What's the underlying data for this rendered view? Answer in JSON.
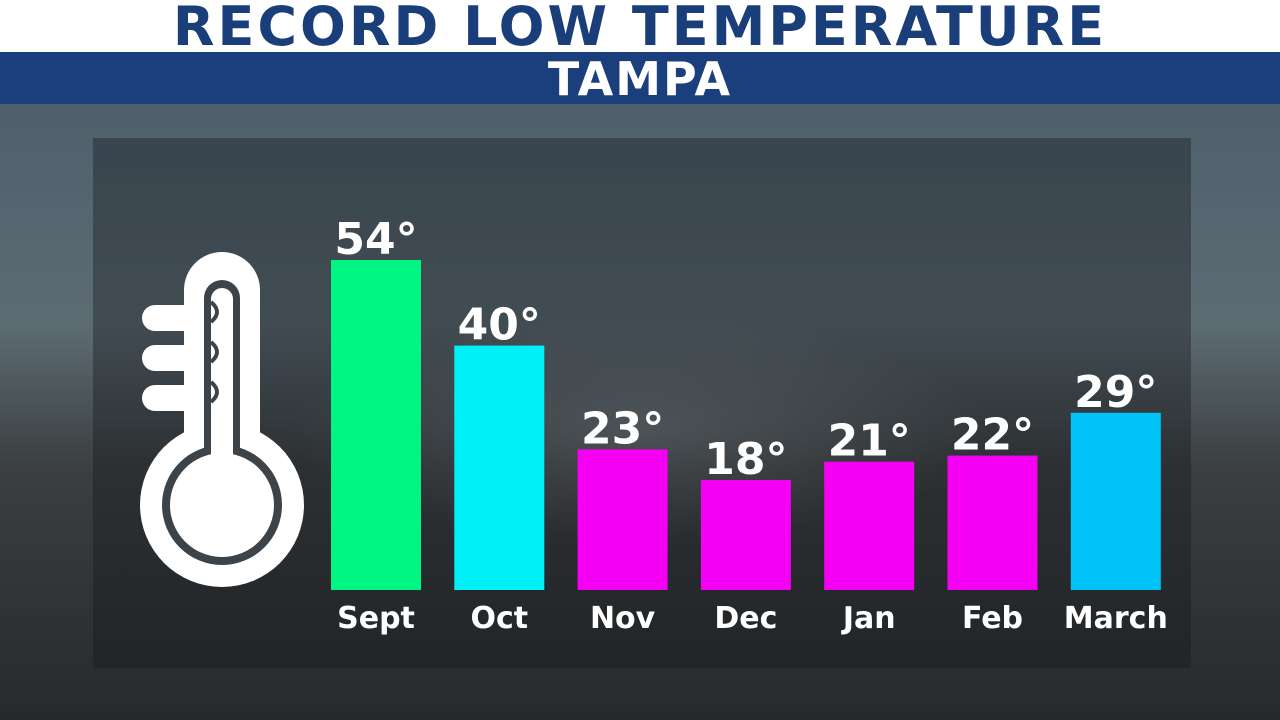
{
  "header": {
    "title": "RECORD LOW TEMPERATURE",
    "subtitle": "TAMPA"
  },
  "colors": {
    "title_text": "#1a3e7a",
    "band": "#1b3f7c"
  },
  "icon": "thermometer-icon",
  "chart_data": {
    "type": "bar",
    "title": "RECORD LOW TEMPERATURE",
    "subtitle": "TAMPA",
    "categories": [
      "Sept",
      "Oct",
      "Nov",
      "Dec",
      "Jan",
      "Feb",
      "March"
    ],
    "values": [
      54,
      40,
      23,
      18,
      21,
      22,
      29
    ],
    "value_labels": [
      "54°",
      "40°",
      "23°",
      "18°",
      "21°",
      "22°",
      "29°"
    ],
    "bar_colors": [
      "#00f582",
      "#00f0f8",
      "#f500f5",
      "#f500f5",
      "#f500f5",
      "#f500f5",
      "#00c3f8"
    ],
    "xlabel": "",
    "ylabel": "",
    "ylim": [
      0,
      54
    ],
    "grid": false,
    "legend": "none"
  }
}
